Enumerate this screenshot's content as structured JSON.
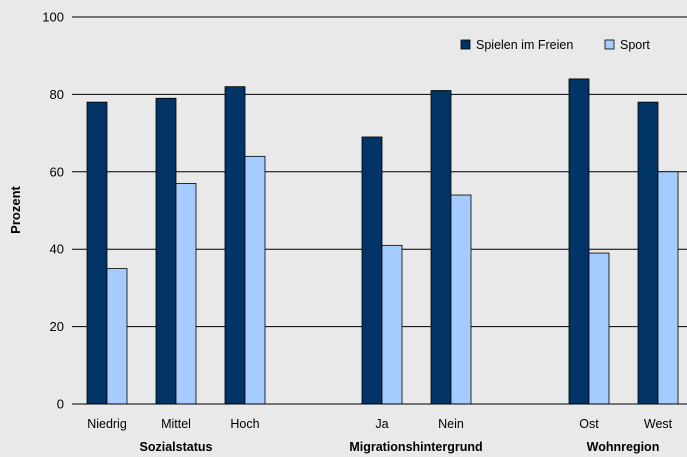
{
  "chart_data": {
    "type": "bar",
    "ylabel": "Prozent",
    "ylim": [
      0,
      100
    ],
    "yticks": [
      0,
      20,
      40,
      60,
      80,
      100
    ],
    "grid": true,
    "legend_position": "top-right",
    "groups": [
      {
        "label": "Sozialstatus",
        "categories": [
          "Niedrig",
          "Mittel",
          "Hoch"
        ]
      },
      {
        "label": "Migrationshintergrund",
        "categories": [
          "Ja",
          "Nein"
        ]
      },
      {
        "label": "Wohnregion",
        "categories": [
          "Ost",
          "West"
        ]
      }
    ],
    "categories": [
      "Niedrig",
      "Mittel",
      "Hoch",
      "Ja",
      "Nein",
      "Ost",
      "West"
    ],
    "series": [
      {
        "name": "Spielen im Freien",
        "color": "#003366",
        "values": [
          78,
          79,
          82,
          69,
          81,
          84,
          78
        ]
      },
      {
        "name": "Sport",
        "color": "#a6ccff",
        "values": [
          35,
          57,
          64,
          41,
          54,
          39,
          60
        ]
      }
    ]
  }
}
